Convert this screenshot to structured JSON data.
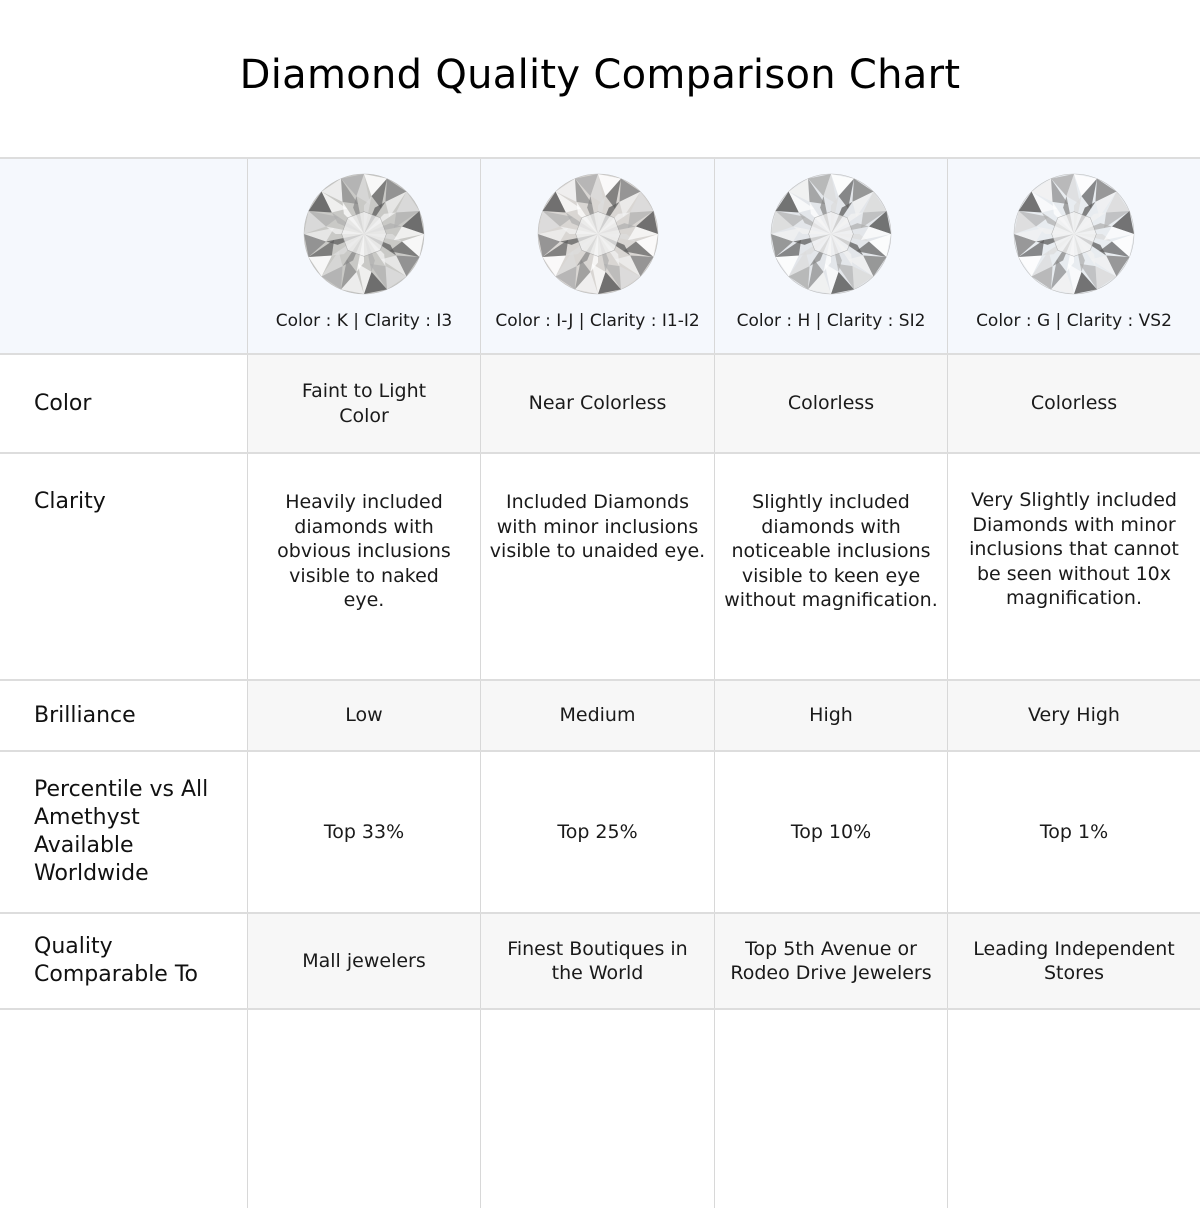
{
  "title": "Diamond Quality Comparison Chart",
  "columns": [
    {
      "caption": "Color : K | Clarity : I3",
      "tint": "#c9c9c6"
    },
    {
      "caption": "Color : I-J | Clarity : I1-I2",
      "tint": "#d9d6d3"
    },
    {
      "caption": "Color : H | Clarity : SI2",
      "tint": "#e3e6ea"
    },
    {
      "caption": "Color : G | Clarity : VS2",
      "tint": "#e8ecf0"
    }
  ],
  "rows": [
    {
      "label": "Color",
      "values": [
        "Faint to Light Color",
        "Near Colorless",
        "Colorless",
        "Colorless"
      ]
    },
    {
      "label": "Clarity",
      "values": [
        "Heavily included diamonds with obvious inclusions visible to naked eye.",
        "Included Diamonds with minor inclusions visible to unaided eye.",
        "Slightly included diamonds with noticeable inclusions visible to keen eye without magnification.",
        "Very Slightly included Diamonds with minor inclusions that cannot be seen without 10x magnification."
      ]
    },
    {
      "label": "Brilliance",
      "values": [
        "Low",
        "Medium",
        "High",
        "Very High"
      ]
    },
    {
      "label": "Percentile vs All Amethyst Available Worldwide",
      "values": [
        "Top 33%",
        "Top 25%",
        "Top 10%",
        "Top 1%"
      ]
    },
    {
      "label": "Quality Comparable To",
      "values": [
        "Mall jewelers",
        "Finest Boutiques in the World",
        "Top 5th Avenue or Rodeo Drive Jewelers",
        "Leading Independent Stores"
      ]
    }
  ]
}
